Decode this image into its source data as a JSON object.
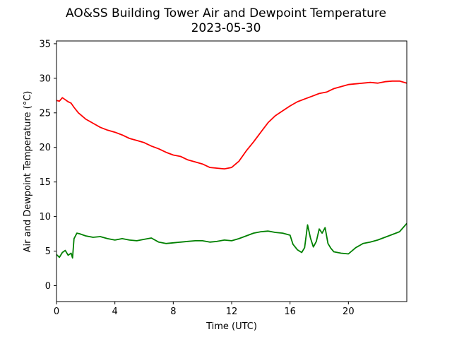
{
  "chart_data": {
    "type": "line",
    "title": "AO&SS Building Tower Air and Dewpoint Temperature",
    "subtitle": "2023-05-30",
    "xlabel": "Time (UTC)",
    "ylabel": "Air and Dewpoint Temperature (°C)",
    "xlim": [
      0,
      24
    ],
    "ylim": [
      -2.3,
      35.4
    ],
    "xticks": [
      0,
      4,
      8,
      12,
      16,
      20
    ],
    "yticks": [
      0,
      5,
      10,
      15,
      20,
      25,
      30,
      35
    ],
    "grid": false,
    "legend": "none",
    "series": [
      {
        "color": "#ff0000",
        "x": [
          0.0,
          0.2,
          0.4,
          0.6,
          0.8,
          1.0,
          1.2,
          1.5,
          2.0,
          2.5,
          3.0,
          3.5,
          4.0,
          4.5,
          5.0,
          5.5,
          6.0,
          6.5,
          7.0,
          7.5,
          8.0,
          8.5,
          9.0,
          9.5,
          10.0,
          10.5,
          11.0,
          11.5,
          12.0,
          12.5,
          13.0,
          13.5,
          14.0,
          14.5,
          15.0,
          15.5,
          16.0,
          16.5,
          17.0,
          17.5,
          18.0,
          18.5,
          19.0,
          19.5,
          20.0,
          20.5,
          21.0,
          21.5,
          22.0,
          22.5,
          23.0,
          23.5,
          24.0
        ],
        "values": [
          26.8,
          26.7,
          27.2,
          26.9,
          26.6,
          26.4,
          25.8,
          25.0,
          24.1,
          23.5,
          22.9,
          22.5,
          22.2,
          21.8,
          21.3,
          21.0,
          20.7,
          20.2,
          19.8,
          19.3,
          18.9,
          18.7,
          18.2,
          17.9,
          17.6,
          17.1,
          17.0,
          16.9,
          17.1,
          18.0,
          19.5,
          20.8,
          22.2,
          23.6,
          24.6,
          25.3,
          26.0,
          26.6,
          27.0,
          27.4,
          27.8,
          28.0,
          28.5,
          28.8,
          29.1,
          29.2,
          29.3,
          29.4,
          29.3,
          29.5,
          29.6,
          29.6,
          29.3
        ]
      },
      {
        "color": "#008000",
        "x": [
          0.0,
          0.2,
          0.4,
          0.6,
          0.8,
          1.0,
          1.1,
          1.2,
          1.4,
          1.6,
          2.0,
          2.5,
          3.0,
          3.5,
          4.0,
          4.5,
          5.0,
          5.5,
          6.0,
          6.5,
          7.0,
          7.5,
          8.0,
          8.5,
          9.0,
          9.5,
          10.0,
          10.5,
          11.0,
          11.5,
          12.0,
          12.5,
          13.0,
          13.5,
          14.0,
          14.5,
          15.0,
          15.5,
          16.0,
          16.2,
          16.5,
          16.8,
          17.0,
          17.2,
          17.4,
          17.6,
          17.8,
          18.0,
          18.2,
          18.4,
          18.6,
          18.8,
          19.0,
          19.5,
          20.0,
          20.5,
          21.0,
          21.5,
          22.0,
          22.5,
          23.0,
          23.5,
          24.0
        ],
        "values": [
          4.5,
          4.1,
          4.8,
          5.1,
          4.4,
          4.7,
          4.0,
          6.8,
          7.6,
          7.5,
          7.2,
          7.0,
          7.1,
          6.8,
          6.6,
          6.8,
          6.6,
          6.5,
          6.7,
          6.9,
          6.3,
          6.1,
          6.2,
          6.3,
          6.4,
          6.5,
          6.5,
          6.3,
          6.4,
          6.6,
          6.5,
          6.8,
          7.2,
          7.6,
          7.8,
          7.9,
          7.7,
          7.6,
          7.3,
          6.0,
          5.2,
          4.8,
          5.5,
          8.8,
          6.9,
          5.6,
          6.4,
          8.2,
          7.6,
          8.4,
          6.1,
          5.4,
          4.9,
          4.7,
          4.6,
          5.5,
          6.1,
          6.3,
          6.6,
          7.0,
          7.4,
          7.8,
          9.0
        ]
      }
    ]
  }
}
